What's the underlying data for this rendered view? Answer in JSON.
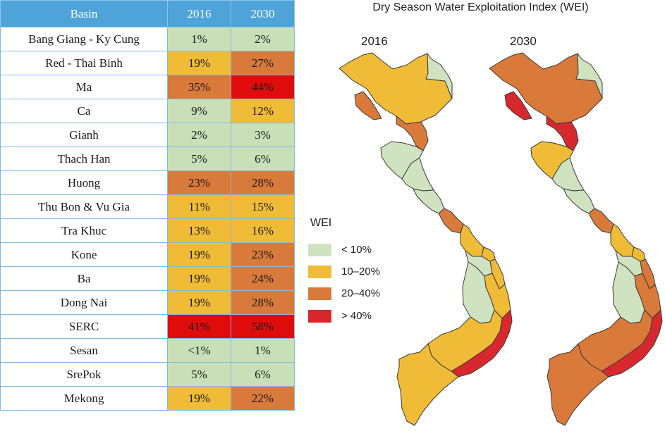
{
  "table": {
    "headers": [
      "Basin",
      "2016",
      "2030"
    ],
    "rows": [
      {
        "basin": "Bang Giang - Ky Cung",
        "y2016": "1%",
        "y2030": "2%",
        "c2016": "low",
        "c2030": "low"
      },
      {
        "basin": "Red - Thai Binh",
        "y2016": "19%",
        "y2030": "27%",
        "c2016": "mid",
        "c2030": "high"
      },
      {
        "basin": "Ma",
        "y2016": "35%",
        "y2030": "44%",
        "c2016": "high",
        "c2030": "vhigh"
      },
      {
        "basin": "Ca",
        "y2016": "9%",
        "y2030": "12%",
        "c2016": "low",
        "c2030": "mid"
      },
      {
        "basin": "Gianh",
        "y2016": "2%",
        "y2030": "3%",
        "c2016": "low",
        "c2030": "low"
      },
      {
        "basin": "Thach Han",
        "y2016": "5%",
        "y2030": "6%",
        "c2016": "low",
        "c2030": "low"
      },
      {
        "basin": "Huong",
        "y2016": "23%",
        "y2030": "28%",
        "c2016": "high",
        "c2030": "high"
      },
      {
        "basin": "Thu Bon & Vu Gia",
        "y2016": "11%",
        "y2030": "15%",
        "c2016": "mid",
        "c2030": "mid"
      },
      {
        "basin": "Tra Khuc",
        "y2016": "13%",
        "y2030": "16%",
        "c2016": "mid",
        "c2030": "mid"
      },
      {
        "basin": "Kone",
        "y2016": "19%",
        "y2030": "23%",
        "c2016": "mid",
        "c2030": "high"
      },
      {
        "basin": "Ba",
        "y2016": "19%",
        "y2030": "24%",
        "c2016": "mid",
        "c2030": "high"
      },
      {
        "basin": "Dong Nai",
        "y2016": "19%",
        "y2030": "28%",
        "c2016": "mid",
        "c2030": "high"
      },
      {
        "basin": "SERC",
        "y2016": "41%",
        "y2030": "58%",
        "c2016": "vhigh",
        "c2030": "vhigh"
      },
      {
        "basin": "Sesan",
        "y2016": "<1%",
        "y2030": "1%",
        "c2016": "low",
        "c2030": "low"
      },
      {
        "basin": "SrePok",
        "y2016": "5%",
        "y2030": "6%",
        "c2016": "low",
        "c2030": "low"
      },
      {
        "basin": "Mekong",
        "y2016": "19%",
        "y2030": "22%",
        "c2016": "mid",
        "c2030": "high"
      }
    ]
  },
  "table_colors": {
    "low": "#c9dfb8",
    "mid": "#f0bb36",
    "high": "#d97a3a",
    "vhigh": "#e00c0c"
  },
  "map": {
    "title": "Dry Season Water Exploitation Index (WEI)",
    "year_left": "2016",
    "year_right": "2030",
    "legend": {
      "title": "WEI",
      "items": [
        {
          "label": "< 10%",
          "color": "#cfe3c1"
        },
        {
          "label": "10–20%",
          "color": "#f0bb36"
        },
        {
          "label": "20–40%",
          "color": "#d97a3a"
        },
        {
          "label": "> 40%",
          "color": "#d7292d"
        }
      ]
    },
    "region_colors": {
      "left": {
        "north_ne": "#cfe3c1",
        "north_main": "#f0bb36",
        "north_west": "#d97a3a",
        "ma": "#d97a3a",
        "ca": "#cfe3c1",
        "gianh": "#cfe3c1",
        "thach_han": "#cfe3c1",
        "huong": "#d97a3a",
        "thu_bon": "#f0bb36",
        "tra_khuc": "#f0bb36",
        "sesan": "#cfe3c1",
        "kone": "#f0bb36",
        "ba": "#f0bb36",
        "srepok": "#cfe3c1",
        "serc": "#d7292d",
        "dong_nai": "#f0bb36",
        "mekong": "#f0bb36"
      },
      "right": {
        "north_ne": "#cfe3c1",
        "north_main": "#d97a3a",
        "north_west": "#d7292d",
        "ma": "#d7292d",
        "ca": "#f0bb36",
        "gianh": "#cfe3c1",
        "thach_han": "#cfe3c1",
        "huong": "#d97a3a",
        "thu_bon": "#f0bb36",
        "tra_khuc": "#f0bb36",
        "sesan": "#cfe3c1",
        "kone": "#d97a3a",
        "ba": "#d97a3a",
        "srepok": "#cfe3c1",
        "serc": "#d7292d",
        "dong_nai": "#d97a3a",
        "mekong": "#d97a3a"
      }
    }
  }
}
